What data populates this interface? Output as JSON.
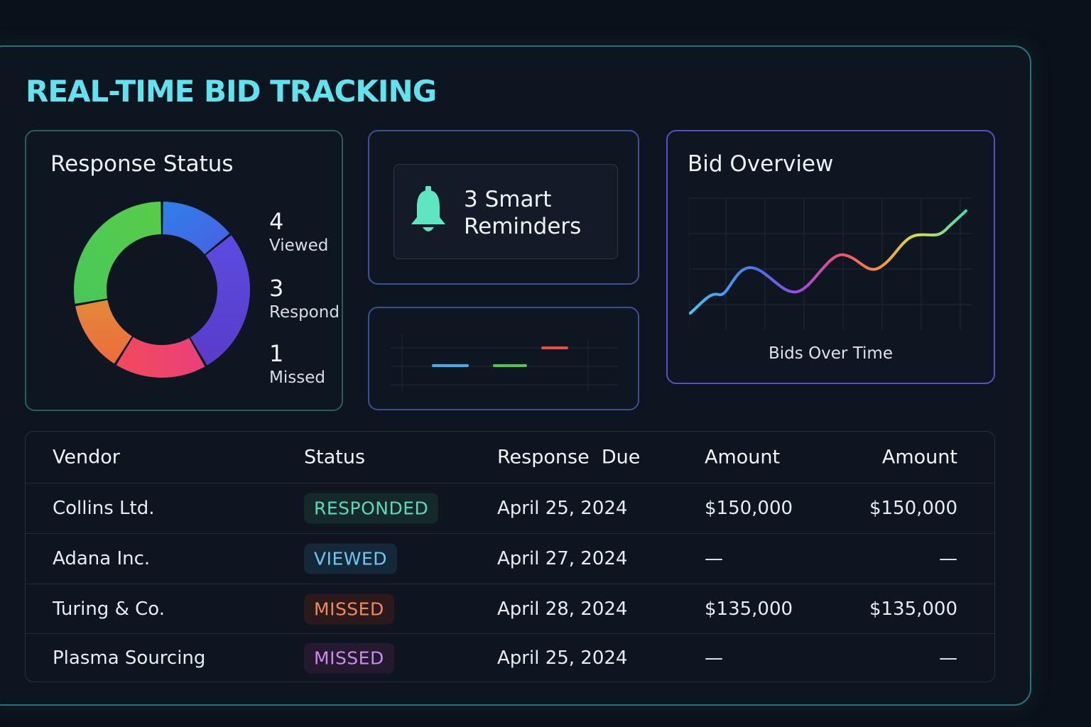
{
  "page": {
    "title": "REAL-TIME BID TRACKING"
  },
  "response_status": {
    "title": "Response Status",
    "stats": [
      {
        "value": "4",
        "label": "Viewed"
      },
      {
        "value": "3",
        "label": "Respond"
      },
      {
        "value": "1",
        "label": "Missed"
      }
    ],
    "donut_colors": [
      "#3a74e6",
      "#5a44d6",
      "#f0436e",
      "#ea7c38",
      "#4cc85a"
    ]
  },
  "reminders": {
    "text_line1": "3 Smart",
    "text_line2": "Reminders",
    "icon": "bell-icon",
    "icon_color": "#5ee6c2"
  },
  "bid_overview": {
    "title": "Bid Overview",
    "caption": "Bids Over Time"
  },
  "table": {
    "headers": [
      "Vendor",
      "Status",
      "Response  Due",
      "Amount",
      "Amount"
    ],
    "rows": [
      {
        "vendor": "Collins Ltd.",
        "status": "RESPONDED",
        "status_color": "#5fd9b4",
        "status_bg": "#142a2a",
        "due": "April 25, 2024",
        "amount1": "$150,000",
        "amount2": "$150,000"
      },
      {
        "vendor": "Adana Inc.",
        "status": "VIEWED",
        "status_color": "#6cc8f0",
        "status_bg": "#15283a",
        "due": "April 27, 2024",
        "amount1": "—",
        "amount2": "—"
      },
      {
        "vendor": "Turing & Co.",
        "status": "MISSED",
        "status_color": "#f08a5a",
        "status_bg": "#2a1a1c",
        "due": "April 28, 2024",
        "amount1": "$135,000",
        "amount2": "$135,000"
      },
      {
        "vendor": "Plasma Sourcing",
        "status": "MISSED",
        "status_color": "#cc8ae8",
        "status_bg": "#241a30",
        "due": "April 25, 2024",
        "amount1": "—",
        "amount2": "—"
      }
    ]
  }
}
